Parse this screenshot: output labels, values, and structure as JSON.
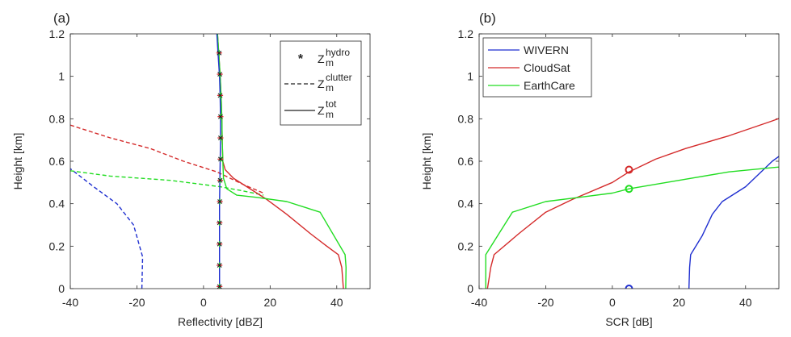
{
  "chart_data": [
    {
      "type": "line",
      "panel_label": "(a)",
      "xlabel": "Reflectivity [dBZ]",
      "ylabel": "Height [km]",
      "xlim": [
        -40,
        50
      ],
      "ylim": [
        0,
        1.2
      ],
      "xticks": [
        -40,
        -20,
        0,
        20,
        40
      ],
      "yticks": [
        0,
        0.2,
        0.4,
        0.6,
        0.8,
        1,
        1.2
      ],
      "grid": false,
      "legend": {
        "position": "top-right",
        "entries": [
          {
            "label": "Z",
            "sup": "hydro",
            "sub": "m",
            "style": "marker"
          },
          {
            "label": "Z",
            "sup": "clutter",
            "sub": "m",
            "style": "dashed"
          },
          {
            "label": "Z",
            "sup": "tot",
            "sub": "m",
            "style": "solid"
          }
        ]
      },
      "series": [
        {
          "color": "#1f2fd0",
          "style": "dashed",
          "points": [
            [
              -18.5,
              0
            ],
            [
              -18.3,
              0.15
            ],
            [
              -21,
              0.3
            ],
            [
              -26,
              0.4
            ],
            [
              -33,
              0.48
            ],
            [
              -40,
              0.565
            ]
          ]
        },
        {
          "color": "#d42a2a",
          "style": "dashed",
          "points": [
            [
              -40,
              0.77
            ],
            [
              -28,
              0.71
            ],
            [
              -16,
              0.66
            ],
            [
              -6,
              0.6
            ],
            [
              4,
              0.55
            ],
            [
              12,
              0.49
            ],
            [
              18,
              0.45
            ]
          ]
        },
        {
          "color": "#22dd22",
          "style": "dashed",
          "points": [
            [
              -40,
              0.555
            ],
            [
              -28,
              0.53
            ],
            [
              -10,
              0.51
            ],
            [
              5,
              0.48
            ],
            [
              12,
              0.46
            ],
            [
              18,
              0.44
            ]
          ]
        },
        {
          "color": "#d42a2a",
          "style": "solid",
          "points": [
            [
              4.2,
              1.2
            ],
            [
              4.6,
              1.1
            ],
            [
              5.0,
              1.0
            ],
            [
              5.3,
              0.9
            ],
            [
              5.5,
              0.8
            ],
            [
              5.6,
              0.7
            ],
            [
              5.8,
              0.6
            ],
            [
              6.5,
              0.56
            ],
            [
              9,
              0.52
            ],
            [
              13,
              0.48
            ],
            [
              19,
              0.42
            ],
            [
              25,
              0.35
            ],
            [
              32,
              0.26
            ],
            [
              37,
              0.2
            ],
            [
              40.5,
              0.16
            ],
            [
              41.5,
              0.1
            ],
            [
              42,
              0
            ]
          ]
        },
        {
          "color": "#22dd22",
          "style": "solid",
          "points": [
            [
              4.2,
              1.2
            ],
            [
              4.6,
              1.1
            ],
            [
              5.0,
              1.0
            ],
            [
              5.3,
              0.9
            ],
            [
              5.5,
              0.8
            ],
            [
              5.6,
              0.7
            ],
            [
              5.8,
              0.6
            ],
            [
              6.0,
              0.52
            ],
            [
              7,
              0.47
            ],
            [
              10,
              0.44
            ],
            [
              16,
              0.43
            ],
            [
              25,
              0.41
            ],
            [
              35,
              0.36
            ],
            [
              42.5,
              0.16
            ],
            [
              42.8,
              0.1
            ],
            [
              42.7,
              0
            ]
          ]
        },
        {
          "color": "#1f2fd0",
          "style": "solid",
          "points": [
            [
              4.0,
              1.2
            ],
            [
              4.4,
              1.1
            ],
            [
              4.8,
              1.0
            ],
            [
              5.0,
              0.9
            ],
            [
              5.1,
              0.8
            ],
            [
              5.1,
              0.7
            ],
            [
              5.0,
              0.6
            ],
            [
              4.9,
              0.5
            ],
            [
              4.8,
              0.4
            ],
            [
              4.8,
              0.3
            ],
            [
              4.8,
              0.2
            ],
            [
              4.8,
              0.1
            ],
            [
              4.8,
              0
            ]
          ]
        },
        {
          "color": "#202020",
          "style": "marker",
          "points": [
            [
              4.8,
              0.01
            ],
            [
              4.8,
              0.11
            ],
            [
              4.8,
              0.21
            ],
            [
              4.8,
              0.31
            ],
            [
              4.9,
              0.41
            ],
            [
              5.0,
              0.51
            ],
            [
              5.1,
              0.61
            ],
            [
              5.1,
              0.71
            ],
            [
              5.1,
              0.81
            ],
            [
              5.0,
              0.91
            ],
            [
              4.9,
              1.01
            ],
            [
              4.7,
              1.11
            ]
          ]
        }
      ]
    },
    {
      "type": "line",
      "panel_label": "(b)",
      "xlabel": "SCR [dB]",
      "ylabel": "Height [km]",
      "xlim": [
        -40,
        50
      ],
      "ylim": [
        0,
        1.2
      ],
      "xticks": [
        -40,
        -20,
        0,
        20,
        40
      ],
      "yticks": [
        0,
        0.2,
        0.4,
        0.6,
        0.8,
        1,
        1.2
      ],
      "grid": false,
      "legend": {
        "position": "top-left",
        "entries": [
          {
            "label": "WIVERN",
            "color": "#1f2fd0",
            "style": "solid"
          },
          {
            "label": "CloudSat",
            "color": "#d42a2a",
            "style": "solid"
          },
          {
            "label": "EarthCare",
            "color": "#22dd22",
            "style": "solid"
          }
        ]
      },
      "series": [
        {
          "name": "WIVERN",
          "color": "#1f2fd0",
          "style": "solid",
          "points": [
            [
              23,
              0
            ],
            [
              23.2,
              0.1
            ],
            [
              23.5,
              0.16
            ],
            [
              27,
              0.25
            ],
            [
              30,
              0.35
            ],
            [
              33,
              0.41
            ],
            [
              40,
              0.48
            ],
            [
              48,
              0.6
            ],
            [
              55,
              0.68
            ]
          ]
        },
        {
          "name": "CloudSat",
          "color": "#d42a2a",
          "style": "solid",
          "points": [
            [
              -37.5,
              0
            ],
            [
              -37,
              0.05
            ],
            [
              -36.5,
              0.1
            ],
            [
              -35.5,
              0.16
            ],
            [
              -28,
              0.26
            ],
            [
              -20,
              0.36
            ],
            [
              -12,
              0.42
            ],
            [
              0,
              0.5
            ],
            [
              5,
              0.55
            ],
            [
              13,
              0.61
            ],
            [
              22,
              0.66
            ],
            [
              35,
              0.72
            ],
            [
              48,
              0.79
            ],
            [
              55,
              0.83
            ]
          ]
        },
        {
          "name": "EarthCare",
          "color": "#22dd22",
          "style": "solid",
          "points": [
            [
              -38,
              0
            ],
            [
              -38,
              0.1
            ],
            [
              -38,
              0.16
            ],
            [
              -34,
              0.26
            ],
            [
              -30,
              0.36
            ],
            [
              -20,
              0.41
            ],
            [
              -10,
              0.43
            ],
            [
              0,
              0.45
            ],
            [
              5,
              0.47
            ],
            [
              20,
              0.51
            ],
            [
              35,
              0.55
            ],
            [
              48,
              0.57
            ],
            [
              55,
              0.58
            ]
          ]
        }
      ],
      "circle_markers": [
        {
          "x": 5,
          "y": 0,
          "color": "#1f2fd0"
        },
        {
          "x": 5,
          "y": 0.56,
          "color": "#d42a2a"
        },
        {
          "x": 5,
          "y": 0.47,
          "color": "#22dd22"
        }
      ]
    }
  ]
}
